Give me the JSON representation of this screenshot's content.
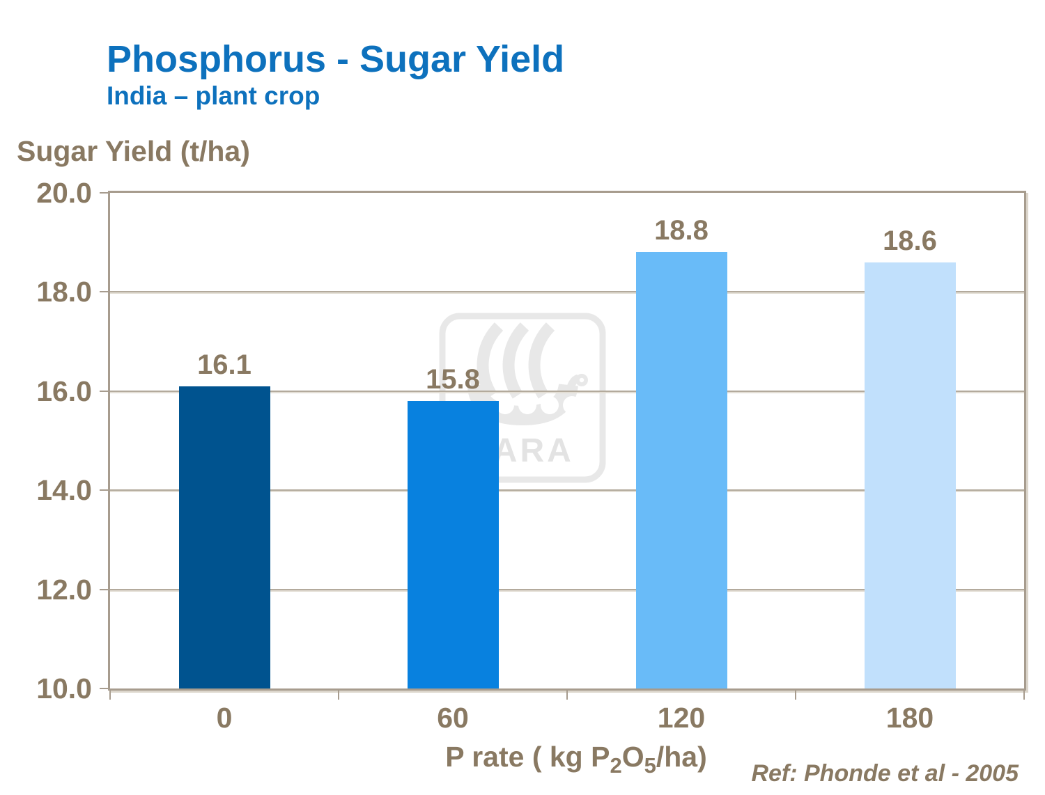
{
  "header": {
    "title": "Phosphorus - Sugar Yield",
    "subtitle": "India – plant crop"
  },
  "x_axis_title": {
    "p1": "P rate ( kg P",
    "s1": "2",
    "p2": "O",
    "s2": "5",
    "p3": "/ha)"
  },
  "footer": {
    "reference": "Ref: Phonde et al - 2005"
  },
  "watermark": {
    "label": "YARA"
  },
  "colors": {
    "title_blue": "#0D71BD",
    "axis_text_taupe": "#897962",
    "axis_line": "#A79C8E",
    "gridline": "#B3AA9C",
    "watermark_gray": "#E8E8E8"
  },
  "chart_data": {
    "type": "bar",
    "title": "Phosphorus - Sugar Yield",
    "subtitle": "India – plant crop",
    "categories": [
      "0",
      "60",
      "120",
      "180"
    ],
    "values": [
      16.1,
      15.8,
      18.8,
      18.6
    ],
    "bar_labels": [
      "16.1",
      "15.8",
      "18.8",
      "18.6"
    ],
    "bar_colors": [
      "#00538F",
      "#0881DF",
      "#69BBF8",
      "#C1E0FC"
    ],
    "xlabel": "P rate ( kg P2O5/ha)",
    "ylabel": "Sugar Yield (t/ha)",
    "ylim": [
      10.0,
      20.0
    ],
    "ytick_step": 2.0,
    "yticks": [
      "20.0",
      "18.0",
      "16.0",
      "14.0",
      "12.0",
      "10.0"
    ],
    "ytick_values": [
      20.0,
      18.0,
      16.0,
      14.0,
      12.0,
      10.0
    ],
    "grid": true,
    "legend": false
  }
}
